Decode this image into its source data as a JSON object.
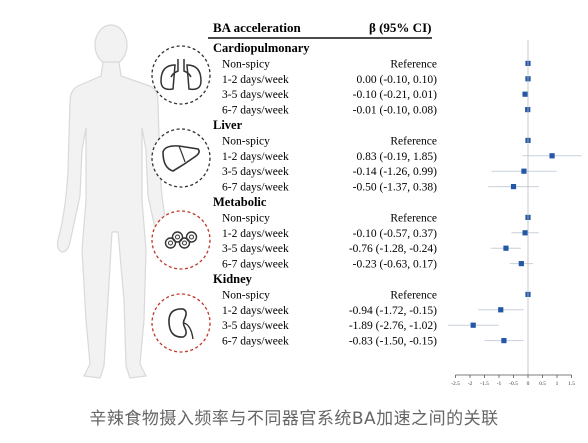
{
  "header": {
    "left": "BA acceleration",
    "right": "β (95% CI)"
  },
  "caption": "辛辣食物摄入频率与不同器官系统BA加速之间的关联",
  "colors": {
    "marker": "#2457a6",
    "ci_line": "#c8d0dc",
    "circle_dark": "#333333",
    "circle_red": "#c0392b"
  },
  "icons": [
    {
      "name": "lungs-icon",
      "style": "dark"
    },
    {
      "name": "liver-icon",
      "style": "dark"
    },
    {
      "name": "metabolism-icon",
      "style": "red"
    },
    {
      "name": "kidney-icon",
      "style": "red"
    }
  ],
  "chart_data": {
    "type": "forest",
    "xlim": [
      -2.5,
      1.5
    ],
    "reference_value": 0,
    "xticks": [
      "-2.5",
      "-2",
      "-1.5",
      "-1",
      "-0.5",
      "0",
      "0.5",
      "1",
      "1.5"
    ],
    "groups": [
      {
        "name": "Cardiopulmonary",
        "rows": [
          {
            "label": "Non-spicy",
            "text": "Reference",
            "est": 0,
            "lo": null,
            "hi": null
          },
          {
            "label": "1-2 days/week",
            "text": "0.00 (-0.10, 0.10)",
            "est": 0.0,
            "lo": -0.1,
            "hi": 0.1
          },
          {
            "label": "3-5 days/week",
            "text": "-0.10 (-0.21, 0.01)",
            "est": -0.1,
            "lo": -0.21,
            "hi": 0.01
          },
          {
            "label": "6-7 days/week",
            "text": "-0.01 (-0.10, 0.08)",
            "est": -0.01,
            "lo": -0.1,
            "hi": 0.08
          }
        ]
      },
      {
        "name": "Liver",
        "rows": [
          {
            "label": "Non-spicy",
            "text": "Reference",
            "est": 0,
            "lo": null,
            "hi": null
          },
          {
            "label": "1-2 days/week",
            "text": "0.83 (-0.19, 1.85)",
            "est": 0.83,
            "lo": -0.19,
            "hi": 1.85
          },
          {
            "label": "3-5 days/week",
            "text": "-0.14 (-1.26, 0.99)",
            "est": -0.14,
            "lo": -1.26,
            "hi": 0.99
          },
          {
            "label": "6-7 days/week",
            "text": "-0.50 (-1.37, 0.38)",
            "est": -0.5,
            "lo": -1.37,
            "hi": 0.38
          }
        ]
      },
      {
        "name": "Metabolic",
        "rows": [
          {
            "label": "Non-spicy",
            "text": "Reference",
            "est": 0,
            "lo": null,
            "hi": null
          },
          {
            "label": "1-2 days/week",
            "text": "-0.10 (-0.57, 0.37)",
            "est": -0.1,
            "lo": -0.57,
            "hi": 0.37
          },
          {
            "label": "3-5 days/week",
            "text": "-0.76 (-1.28, -0.24)",
            "est": -0.76,
            "lo": -1.28,
            "hi": -0.24
          },
          {
            "label": "6-7 days/week",
            "text": "-0.23 (-0.63, 0.17)",
            "est": -0.23,
            "lo": -0.63,
            "hi": 0.17
          }
        ]
      },
      {
        "name": "Kidney",
        "rows": [
          {
            "label": "Non-spicy",
            "text": "Reference",
            "est": 0,
            "lo": null,
            "hi": null
          },
          {
            "label": "1-2 days/week",
            "text": "-0.94 (-1.72, -0.15)",
            "est": -0.94,
            "lo": -1.72,
            "hi": -0.15
          },
          {
            "label": "3-5 days/week",
            "text": "-1.89 (-2.76, -1.02)",
            "est": -1.89,
            "lo": -2.76,
            "hi": -1.02
          },
          {
            "label": "6-7 days/week",
            "text": "-0.83 (-1.50, -0.15)",
            "est": -0.83,
            "lo": -1.5,
            "hi": -0.15
          }
        ]
      }
    ]
  }
}
